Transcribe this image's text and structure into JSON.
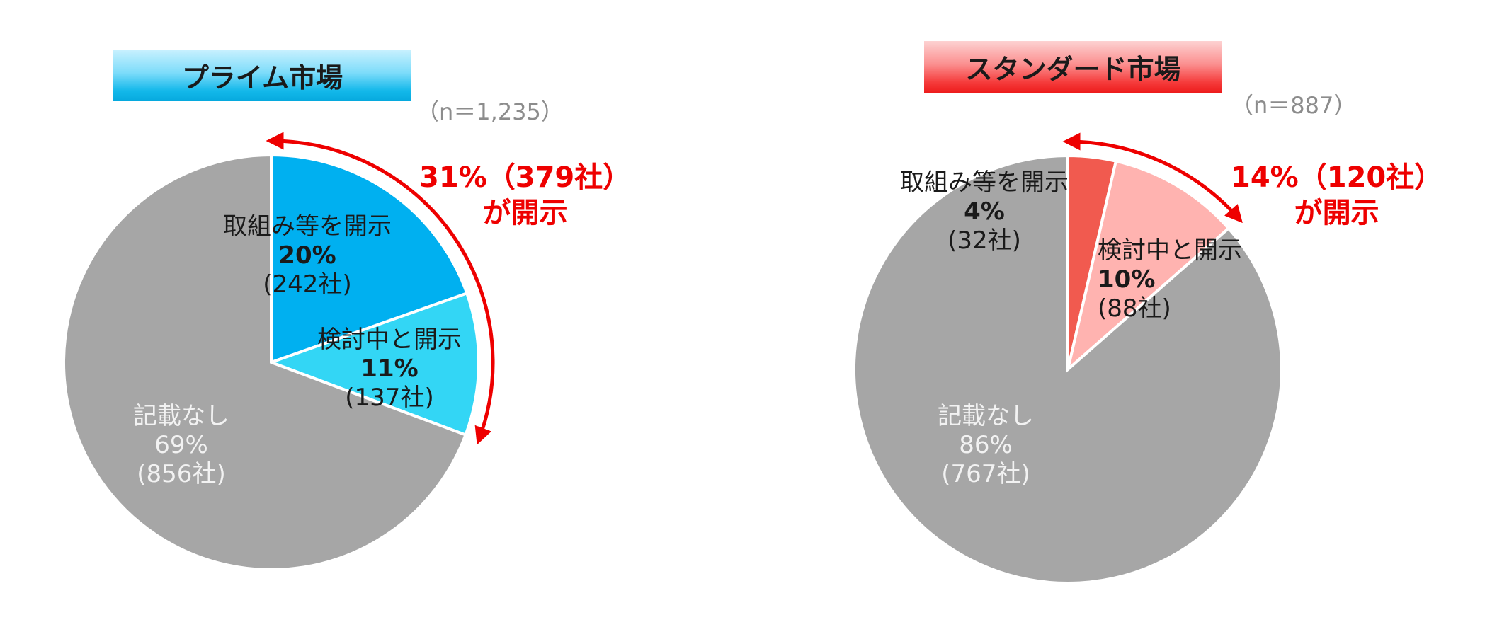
{
  "chart_data": [
    {
      "type": "pie",
      "title": "プライム市場",
      "n_label": "（n＝1,235）",
      "callout": {
        "line1": "31%（379社）",
        "line2": "が開示"
      },
      "colors": {
        "accent": "#00b0f0",
        "light": "#33d6f5",
        "none": "#a6a6a6",
        "arrow": "#ee0000"
      },
      "slices": [
        {
          "label": "取組み等を開示",
          "pct_text": "20%",
          "count_text": "(242社)",
          "value": 242,
          "color": "#00b0f0"
        },
        {
          "label": "検討中と開示",
          "pct_text": "11%",
          "count_text": "(137社)",
          "value": 137,
          "color": "#33d6f5"
        },
        {
          "label": "記載なし",
          "pct_text": "69%",
          "count_text": "(856社)",
          "value": 856,
          "color": "#a6a6a6"
        }
      ]
    },
    {
      "type": "pie",
      "title": "スタンダード市場",
      "n_label": "（n＝887）",
      "callout": {
        "line1": "14%（120社）",
        "line2": "が開示"
      },
      "colors": {
        "accent": "#f15a4f",
        "light": "#ffb3b0",
        "none": "#a6a6a6",
        "arrow": "#ee0000"
      },
      "slices": [
        {
          "label": "取組み等を開示",
          "pct_text": "4%",
          "count_text": "(32社)",
          "value": 32,
          "color": "#f15a4f"
        },
        {
          "label": "検討中と開示",
          "pct_text": "10%",
          "count_text": "(88社)",
          "value": 88,
          "color": "#ffb3b0"
        },
        {
          "label": "記載なし",
          "pct_text": "86%",
          "count_text": "(767社)",
          "value": 767,
          "color": "#a6a6a6"
        }
      ]
    }
  ]
}
